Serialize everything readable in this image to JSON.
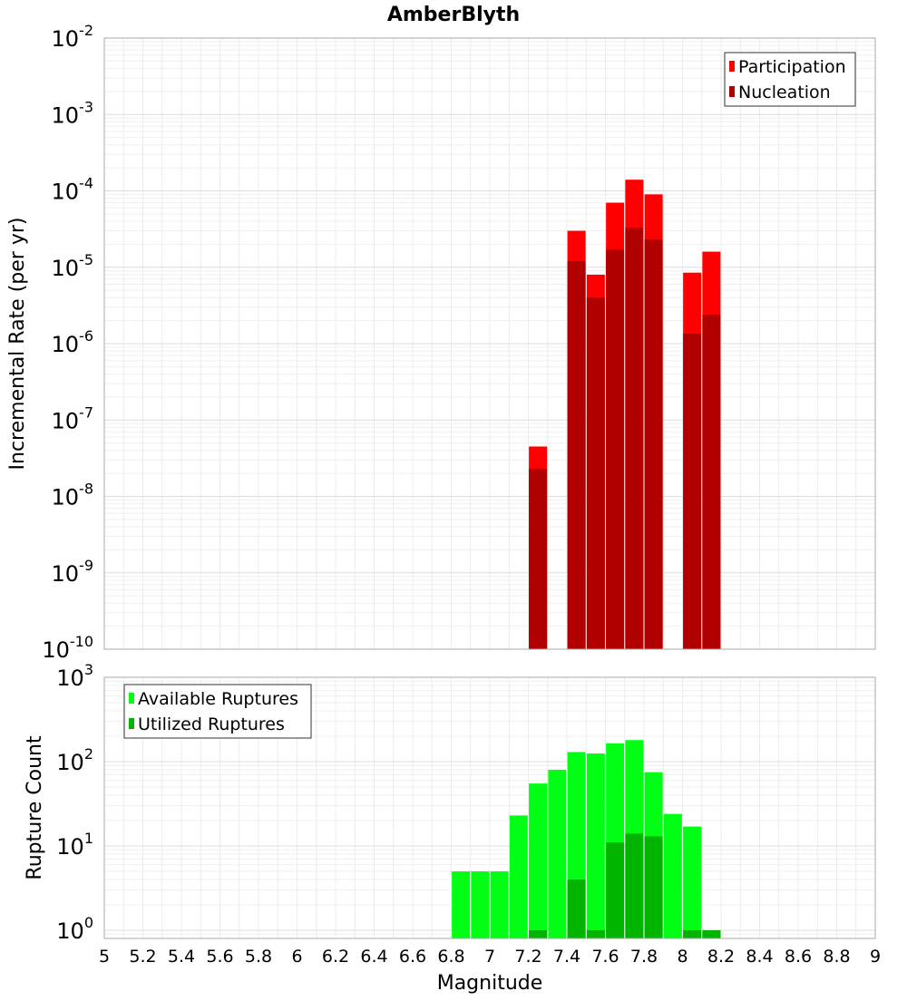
{
  "chart_data": [
    {
      "type": "bar",
      "title": "AmberBlyth",
      "ylabel": "Incremental Rate (per yr)",
      "xlabel": "Magnitude",
      "xlim": [
        5,
        9
      ],
      "ylim": [
        1e-10,
        0.01
      ],
      "yscale": "log",
      "grid": true,
      "legend_position": "top-right",
      "x_ticks": [
        "5",
        "5.2",
        "5.4",
        "5.6",
        "5.8",
        "6",
        "6.2",
        "6.4",
        "6.6",
        "6.8",
        "7",
        "7.2",
        "7.4",
        "7.6",
        "7.8",
        "8",
        "8.2",
        "8.4",
        "8.6",
        "8.8",
        "9"
      ],
      "y_ticks": [
        {
          "base": "10",
          "exp": "-10"
        },
        {
          "base": "10",
          "exp": "-9"
        },
        {
          "base": "10",
          "exp": "-8"
        },
        {
          "base": "10",
          "exp": "-7"
        },
        {
          "base": "10",
          "exp": "-6"
        },
        {
          "base": "10",
          "exp": "-5"
        },
        {
          "base": "10",
          "exp": "-4"
        },
        {
          "base": "10",
          "exp": "-3"
        },
        {
          "base": "10",
          "exp": "-2"
        }
      ],
      "x": [
        7.25,
        7.35,
        7.45,
        7.55,
        7.65,
        7.75,
        7.85,
        7.95,
        8.05,
        8.15
      ],
      "series": [
        {
          "name": "Participation",
          "color": "#ff0000",
          "values": [
            4.5e-08,
            null,
            3e-05,
            8e-06,
            7e-05,
            0.00014,
            9e-05,
            null,
            8.5e-06,
            1.6e-05
          ]
        },
        {
          "name": "Nucleation",
          "color": "#b00000",
          "values": [
            2.3e-08,
            null,
            1.2e-05,
            4e-06,
            1.7e-05,
            3.3e-05,
            2.3e-05,
            null,
            1.35e-06,
            2.4e-06
          ]
        }
      ]
    },
    {
      "type": "bar",
      "title": "",
      "ylabel": "Rupture Count",
      "xlabel": "Magnitude",
      "xlim": [
        5,
        9
      ],
      "ylim": [
        0.8,
        1000
      ],
      "yscale": "log",
      "grid": true,
      "legend_position": "top-left",
      "y_ticks": [
        {
          "base": "10",
          "exp": "0"
        },
        {
          "base": "10",
          "exp": "1"
        },
        {
          "base": "10",
          "exp": "2"
        },
        {
          "base": "10",
          "exp": "3"
        }
      ],
      "x": [
        6.85,
        6.95,
        7.05,
        7.15,
        7.25,
        7.35,
        7.45,
        7.55,
        7.65,
        7.75,
        7.85,
        7.95,
        8.05,
        8.15
      ],
      "series": [
        {
          "name": "Available Ruptures",
          "color": "#00ff14",
          "values": [
            5,
            5,
            5,
            23,
            55,
            80,
            130,
            125,
            165,
            180,
            75,
            24,
            17,
            1
          ]
        },
        {
          "name": "Utilized Ruptures",
          "color": "#00b400",
          "values": [
            null,
            null,
            null,
            null,
            1,
            null,
            4,
            1,
            11,
            14,
            13,
            null,
            1,
            1
          ]
        }
      ]
    }
  ]
}
